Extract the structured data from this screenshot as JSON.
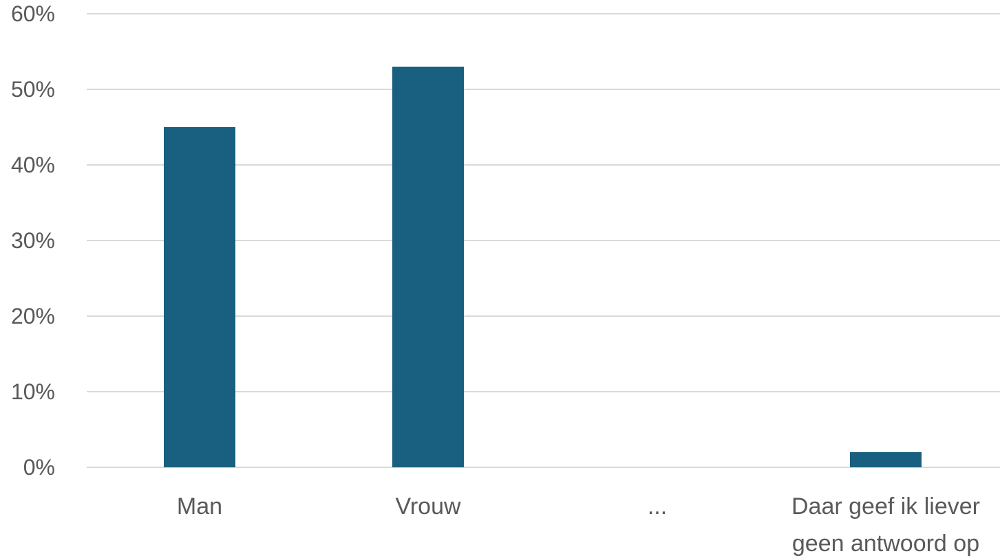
{
  "chart_data": {
    "type": "bar",
    "categories": [
      "Man",
      "Vrouw",
      "...",
      "Daar geef ik liever geen antwoord op"
    ],
    "category_lines": [
      [
        "Man"
      ],
      [
        "Vrouw"
      ],
      [
        "..."
      ],
      [
        "Daar geef ik liever",
        "geen antwoord op"
      ]
    ],
    "values": [
      45,
      53,
      0,
      2
    ],
    "value_unit": "%",
    "title": "",
    "xlabel": "",
    "ylabel": "",
    "ylim": [
      0,
      60
    ],
    "yticks": [
      0,
      10,
      20,
      30,
      40,
      50,
      60
    ],
    "ytick_labels": [
      "0%",
      "10%",
      "20%",
      "30%",
      "40%",
      "50%",
      "60%"
    ],
    "grid": true,
    "legend": "none",
    "bar_color": "#185f80",
    "grid_color": "#d9d9d9",
    "text_color": "#595959"
  }
}
